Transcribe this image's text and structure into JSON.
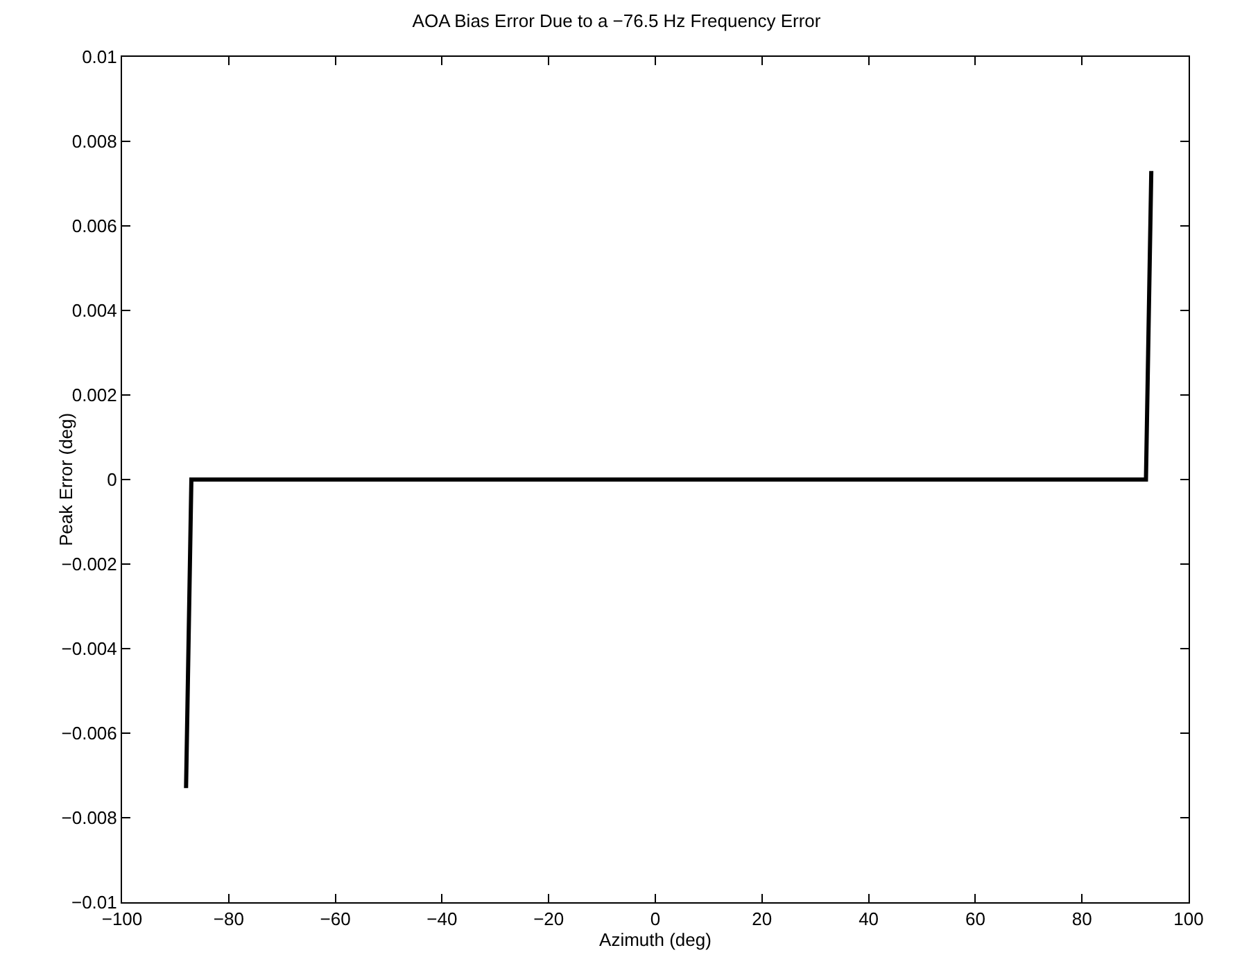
{
  "chart_data": {
    "type": "line",
    "title": "AOA Bias Error Due to a −76.5 Hz Frequency Error",
    "xlabel": "Azimuth (deg)",
    "ylabel": "Peak Error (deg)",
    "series": [
      {
        "color": "#000000",
        "x": [
          -88,
          -87,
          -80,
          -40,
          0,
          40,
          80,
          91.5,
          92,
          93
        ],
        "values": [
          -0.0073,
          0,
          0,
          0,
          0,
          0,
          0,
          0,
          0,
          0.0073
        ]
      }
    ],
    "xlim": [
      -100,
      100
    ],
    "xticks": [
      {
        "value": -100,
        "label": "−100"
      },
      {
        "value": -80,
        "label": "−80"
      },
      {
        "value": -60,
        "label": "−60"
      },
      {
        "value": -40,
        "label": "−40"
      },
      {
        "value": -20,
        "label": "−20"
      },
      0,
      20,
      40,
      60,
      80,
      100
    ],
    "ylim": [
      -0.01,
      0.01
    ],
    "yticks": [
      {
        "value": -0.01,
        "label": "−0.01"
      },
      {
        "value": -0.008,
        "label": "−0.008"
      },
      {
        "value": -0.006,
        "label": "−0.006"
      },
      {
        "value": -0.004,
        "label": "−0.004"
      },
      {
        "value": -0.002,
        "label": "−0.002"
      },
      0,
      0.002,
      0.004,
      0.006,
      0.008,
      0.01
    ],
    "grid": false,
    "marker": "none",
    "line_style": "solid"
  }
}
